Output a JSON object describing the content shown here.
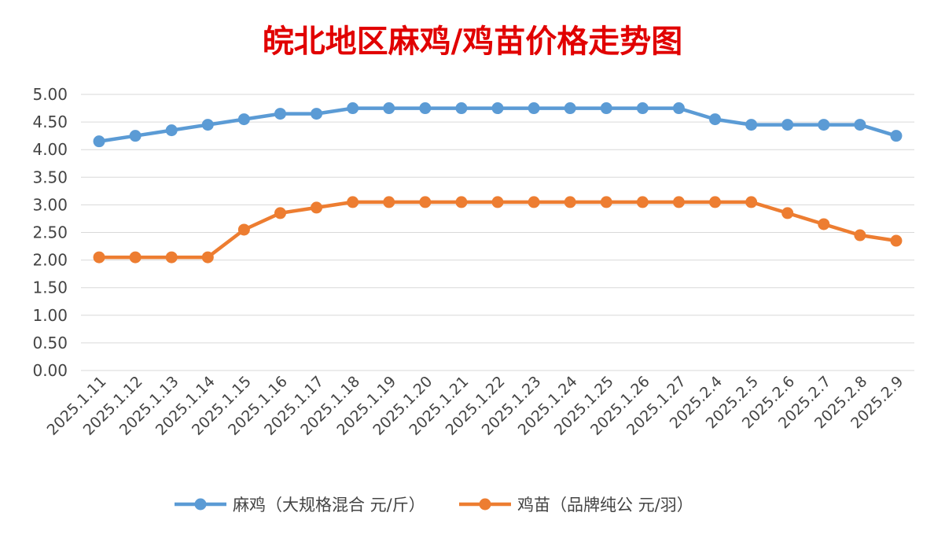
{
  "chart_data": {
    "type": "line",
    "title": "皖北地区麻鸡/鸡苗价格走势图",
    "title_color": "#e10000",
    "xlabel": "",
    "ylabel": "",
    "ylim": [
      0,
      5
    ],
    "y_ticks": [
      "0.00",
      "0.50",
      "1.00",
      "1.50",
      "2.00",
      "2.50",
      "3.00",
      "3.50",
      "4.00",
      "4.50",
      "5.00"
    ],
    "categories": [
      "2025.1.11",
      "2025.1.12",
      "2025.1.13",
      "2025.1.14",
      "2025.1.15",
      "2025.1.16",
      "2025.1.17",
      "2025.1.18",
      "2025.1.19",
      "2025.1.20",
      "2025.1.21",
      "2025.1.22",
      "2025.1.23",
      "2025.1.24",
      "2025.1.25",
      "2025.1.26",
      "2025.1.27",
      "2025.2.4",
      "2025.2.5",
      "2025.2.6",
      "2025.2.7",
      "2025.2.8",
      "2025.2.9"
    ],
    "grid": true,
    "legend_position": "bottom",
    "series": [
      {
        "name": "麻鸡（大规格混合 元/斤）",
        "color": "#5b9bd5",
        "values": [
          4.15,
          4.25,
          4.35,
          4.45,
          4.55,
          4.65,
          4.65,
          4.75,
          4.75,
          4.75,
          4.75,
          4.75,
          4.75,
          4.75,
          4.75,
          4.75,
          4.75,
          4.55,
          4.45,
          4.45,
          4.45,
          4.45,
          4.25
        ]
      },
      {
        "name": "鸡苗（品牌纯公 元/羽）",
        "color": "#ed7d31",
        "values": [
          2.05,
          2.05,
          2.05,
          2.05,
          2.55,
          2.85,
          2.95,
          3.05,
          3.05,
          3.05,
          3.05,
          3.05,
          3.05,
          3.05,
          3.05,
          3.05,
          3.05,
          3.05,
          3.05,
          2.85,
          2.65,
          2.45,
          2.35
        ]
      }
    ]
  }
}
